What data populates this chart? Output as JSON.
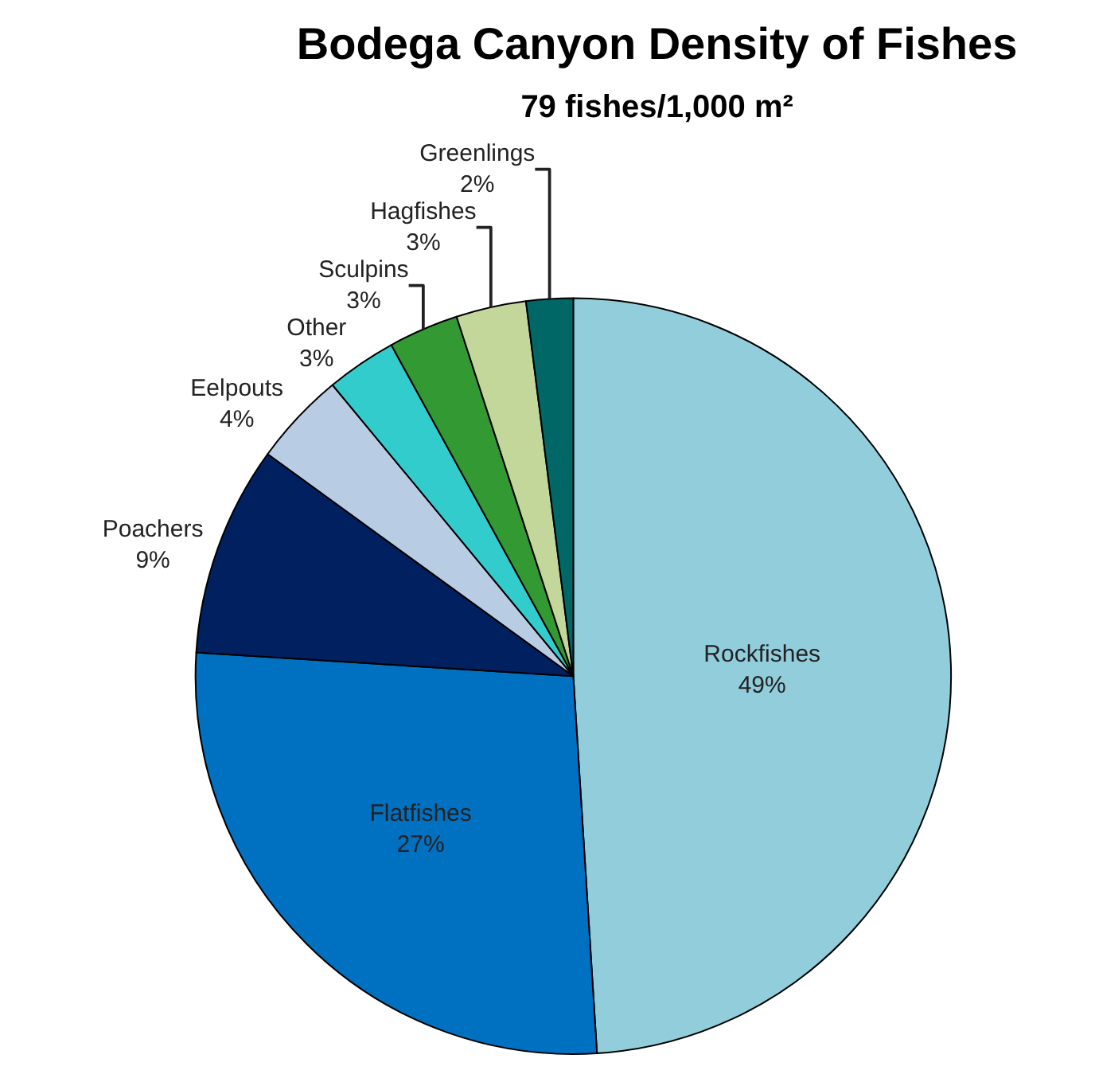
{
  "chart_data": {
    "type": "pie",
    "title": "Bodega Canyon Density of Fishes",
    "subtitle": "79 fishes/1,000 m²",
    "categories": [
      "Rockfishes",
      "Flatfishes",
      "Poachers",
      "Eelpouts",
      "Other",
      "Sculpins",
      "Hagfishes",
      "Greenlings"
    ],
    "values": [
      49,
      27,
      9,
      4,
      3,
      3,
      3,
      2
    ],
    "value_labels": [
      "49%",
      "27%",
      "9%",
      "4%",
      "3%",
      "3%",
      "3%",
      "2%"
    ],
    "colors": [
      "#92cddc",
      "#0070c0",
      "#002060",
      "#b8cce4",
      "#33cccc",
      "#339933",
      "#c4d79b",
      "#006666"
    ]
  }
}
